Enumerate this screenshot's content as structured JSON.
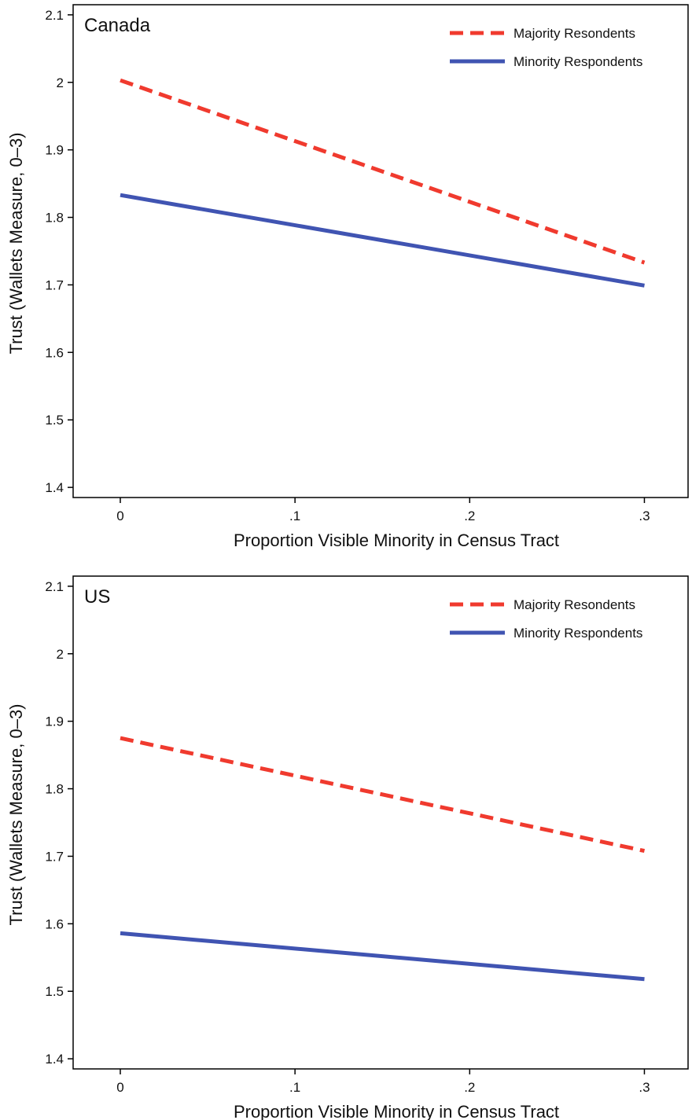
{
  "chart_data": [
    {
      "type": "line",
      "title": "Canada",
      "xlabel": "Proportion Visible Minority in Census Tract",
      "ylabel": "Trust (Wallets Measure, 0–3)",
      "xlim": [
        -0.027,
        0.325
      ],
      "ylim": [
        1.385,
        2.115
      ],
      "x_ticks": [
        0,
        0.1,
        0.2,
        0.3
      ],
      "x_tick_labels": [
        "0",
        ".1",
        ".2",
        ".3"
      ],
      "y_ticks": [
        1.4,
        1.5,
        1.6,
        1.7,
        1.8,
        1.9,
        2.0,
        2.1
      ],
      "y_tick_labels": [
        "1.4",
        "1.5",
        "1.6",
        "1.7",
        "1.8",
        "1.9",
        "2",
        "2.1"
      ],
      "grid": false,
      "legend_position": "top-right",
      "series": [
        {
          "name": "Majority Resondents",
          "color": "#f03a2e",
          "style": "dashed",
          "x": [
            0,
            0.3
          ],
          "y": [
            2.003,
            1.733
          ]
        },
        {
          "name": "Minority Respondents",
          "color": "#4054b2",
          "style": "solid",
          "x": [
            0,
            0.3
          ],
          "y": [
            1.833,
            1.699
          ]
        }
      ]
    },
    {
      "type": "line",
      "title": "US",
      "xlabel": "Proportion Visible Minority in Census Tract",
      "ylabel": "Trust (Wallets Measure, 0–3)",
      "xlim": [
        -0.027,
        0.325
      ],
      "ylim": [
        1.385,
        2.115
      ],
      "x_ticks": [
        0,
        0.1,
        0.2,
        0.3
      ],
      "x_tick_labels": [
        "0",
        ".1",
        ".2",
        ".3"
      ],
      "y_ticks": [
        1.4,
        1.5,
        1.6,
        1.7,
        1.8,
        1.9,
        2.0,
        2.1
      ],
      "y_tick_labels": [
        "1.4",
        "1.5",
        "1.6",
        "1.7",
        "1.8",
        "1.9",
        "2",
        "2.1"
      ],
      "grid": false,
      "legend_position": "top-right",
      "series": [
        {
          "name": "Majority Resondents",
          "color": "#f03a2e",
          "style": "dashed",
          "x": [
            0,
            0.3
          ],
          "y": [
            1.875,
            1.708
          ]
        },
        {
          "name": "Minority Respondents",
          "color": "#4054b2",
          "style": "solid",
          "x": [
            0,
            0.3
          ],
          "y": [
            1.586,
            1.518
          ]
        }
      ]
    }
  ]
}
